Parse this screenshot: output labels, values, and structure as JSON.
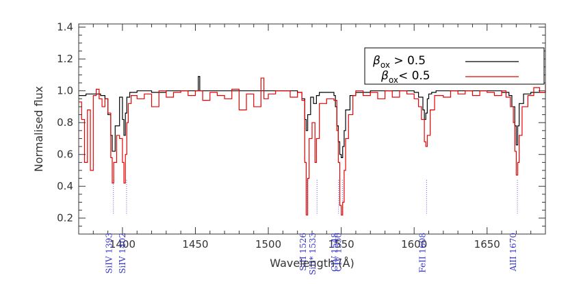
{
  "chart_data": {
    "type": "line",
    "xlabel": "Wavelength (Å)",
    "ylabel": "Normalised flux",
    "xlim": [
      1370,
      1690
    ],
    "ylim": [
      0.1,
      1.42
    ],
    "x_ticks": [
      1400,
      1450,
      1500,
      1550,
      1600,
      1650
    ],
    "y_ticks": [
      0.2,
      0.4,
      0.6,
      0.8,
      1.0,
      1.2,
      1.4
    ],
    "x_tick_labels": [
      "1400",
      "1450",
      "1500",
      "1550",
      "1600",
      "1650"
    ],
    "y_tick_labels": [
      "0.2",
      "0.4",
      "0.6",
      "0.8",
      "1.0",
      "1.2",
      "1.4"
    ],
    "grid": false,
    "legend_position": "top-right",
    "series": [
      {
        "name": "β_ox > 0.5",
        "label_symbol": "β",
        "label_sub": "ox",
        "label_rest": " > 0.5",
        "color": "#000000",
        "style": "step",
        "x": [
          1370,
          1375,
          1380,
          1385,
          1388,
          1390,
          1392,
          1393,
          1395,
          1398,
          1400,
          1401,
          1402,
          1403,
          1405,
          1410,
          1420,
          1430,
          1440,
          1450,
          1452,
          1453,
          1460,
          1470,
          1480,
          1490,
          1500,
          1510,
          1520,
          1523,
          1525,
          1526,
          1527,
          1529,
          1531,
          1533,
          1535,
          1540,
          1545,
          1546,
          1547,
          1548,
          1549,
          1550,
          1551,
          1552,
          1553,
          1556,
          1560,
          1570,
          1580,
          1590,
          1600,
          1603,
          1606,
          1607,
          1608,
          1609,
          1610,
          1612,
          1615,
          1620,
          1630,
          1640,
          1650,
          1660,
          1665,
          1667,
          1669,
          1670,
          1671,
          1672,
          1675,
          1680,
          1690
        ],
        "y": [
          0.97,
          0.98,
          0.98,
          0.97,
          0.95,
          0.85,
          0.72,
          0.62,
          0.78,
          0.96,
          0.82,
          0.72,
          0.86,
          0.96,
          0.99,
          1.0,
          0.99,
          1.0,
          1.0,
          1.0,
          1.09,
          1.0,
          1.0,
          1.0,
          1.0,
          1.0,
          1.0,
          1.0,
          0.99,
          0.95,
          0.82,
          0.75,
          0.85,
          0.96,
          0.92,
          0.97,
          0.99,
          0.99,
          0.97,
          0.9,
          0.78,
          0.68,
          0.6,
          0.58,
          0.65,
          0.75,
          0.88,
          0.97,
          0.99,
          1.0,
          1.0,
          1.0,
          0.99,
          0.96,
          0.88,
          0.82,
          0.86,
          0.95,
          0.98,
          0.99,
          1.0,
          1.0,
          1.0,
          1.0,
          1.0,
          0.99,
          0.97,
          0.9,
          0.78,
          0.66,
          0.78,
          0.92,
          0.98,
          0.99,
          1.0
        ]
      },
      {
        "name": "β_ox < 0.5",
        "label_symbol": "β",
        "label_sub": "ox",
        "label_rest": "< 0.5",
        "color": "#e60000",
        "style": "step",
        "x": [
          1370,
          1372,
          1374,
          1376,
          1378,
          1380,
          1382,
          1384,
          1386,
          1388,
          1390,
          1392,
          1393,
          1394,
          1396,
          1398,
          1400,
          1401,
          1402,
          1403,
          1404,
          1406,
          1410,
          1415,
          1420,
          1425,
          1430,
          1435,
          1440,
          1445,
          1450,
          1455,
          1460,
          1465,
          1470,
          1475,
          1480,
          1485,
          1490,
          1495,
          1497,
          1500,
          1505,
          1510,
          1515,
          1520,
          1523,
          1525,
          1526,
          1527,
          1528,
          1530,
          1532,
          1533,
          1535,
          1540,
          1545,
          1547,
          1548,
          1549,
          1550,
          1551,
          1552,
          1553,
          1555,
          1558,
          1560,
          1565,
          1570,
          1575,
          1580,
          1585,
          1590,
          1595,
          1600,
          1603,
          1605,
          1607,
          1608,
          1609,
          1611,
          1614,
          1620,
          1625,
          1630,
          1635,
          1640,
          1645,
          1650,
          1655,
          1660,
          1663,
          1666,
          1668,
          1669,
          1670,
          1671,
          1672,
          1674,
          1678,
          1682,
          1686,
          1690
        ],
        "y": [
          0.93,
          0.82,
          0.55,
          0.88,
          0.5,
          0.97,
          1.01,
          0.95,
          0.9,
          0.95,
          0.86,
          0.58,
          0.42,
          0.55,
          0.72,
          0.7,
          0.55,
          0.42,
          0.6,
          0.8,
          0.92,
          0.97,
          0.95,
          0.98,
          0.9,
          1.0,
          0.96,
          0.99,
          1.0,
          0.97,
          1.0,
          0.94,
          0.99,
          0.97,
          0.95,
          1.01,
          0.88,
          0.98,
          0.9,
          1.08,
          0.95,
          0.98,
          1.0,
          1.0,
          0.96,
          0.99,
          0.94,
          0.55,
          0.22,
          0.45,
          0.7,
          0.8,
          0.55,
          0.7,
          0.92,
          0.95,
          0.94,
          0.75,
          0.55,
          0.28,
          0.22,
          0.3,
          0.5,
          0.7,
          0.85,
          0.97,
          1.0,
          0.97,
          0.99,
          0.95,
          1.0,
          0.96,
          1.0,
          0.98,
          0.95,
          0.9,
          0.82,
          0.68,
          0.65,
          0.72,
          0.88,
          0.97,
          0.96,
          1.0,
          0.98,
          1.0,
          0.97,
          1.0,
          0.99,
          0.97,
          1.0,
          0.96,
          0.9,
          0.8,
          0.62,
          0.47,
          0.55,
          0.72,
          0.9,
          0.97,
          1.02,
          0.99,
          1.04
        ]
      }
    ],
    "annotations": [
      {
        "label": "SiIV 1393",
        "x": 1393.8
      },
      {
        "label": "SiIV 1402",
        "x": 1402.8
      },
      {
        "label": "SiII 1526",
        "x": 1526.7
      },
      {
        "label": "SiII* 1533",
        "x": 1533.4
      },
      {
        "label": "CIV 1548",
        "x": 1548.2
      },
      {
        "label": "CIV 1550",
        "x": 1550.8
      },
      {
        "label": "FeII 1608",
        "x": 1608.5
      },
      {
        "label": "AlII 1670",
        "x": 1670.8
      }
    ],
    "annotation_color": "#3333cc",
    "frame_color": "#333333"
  }
}
